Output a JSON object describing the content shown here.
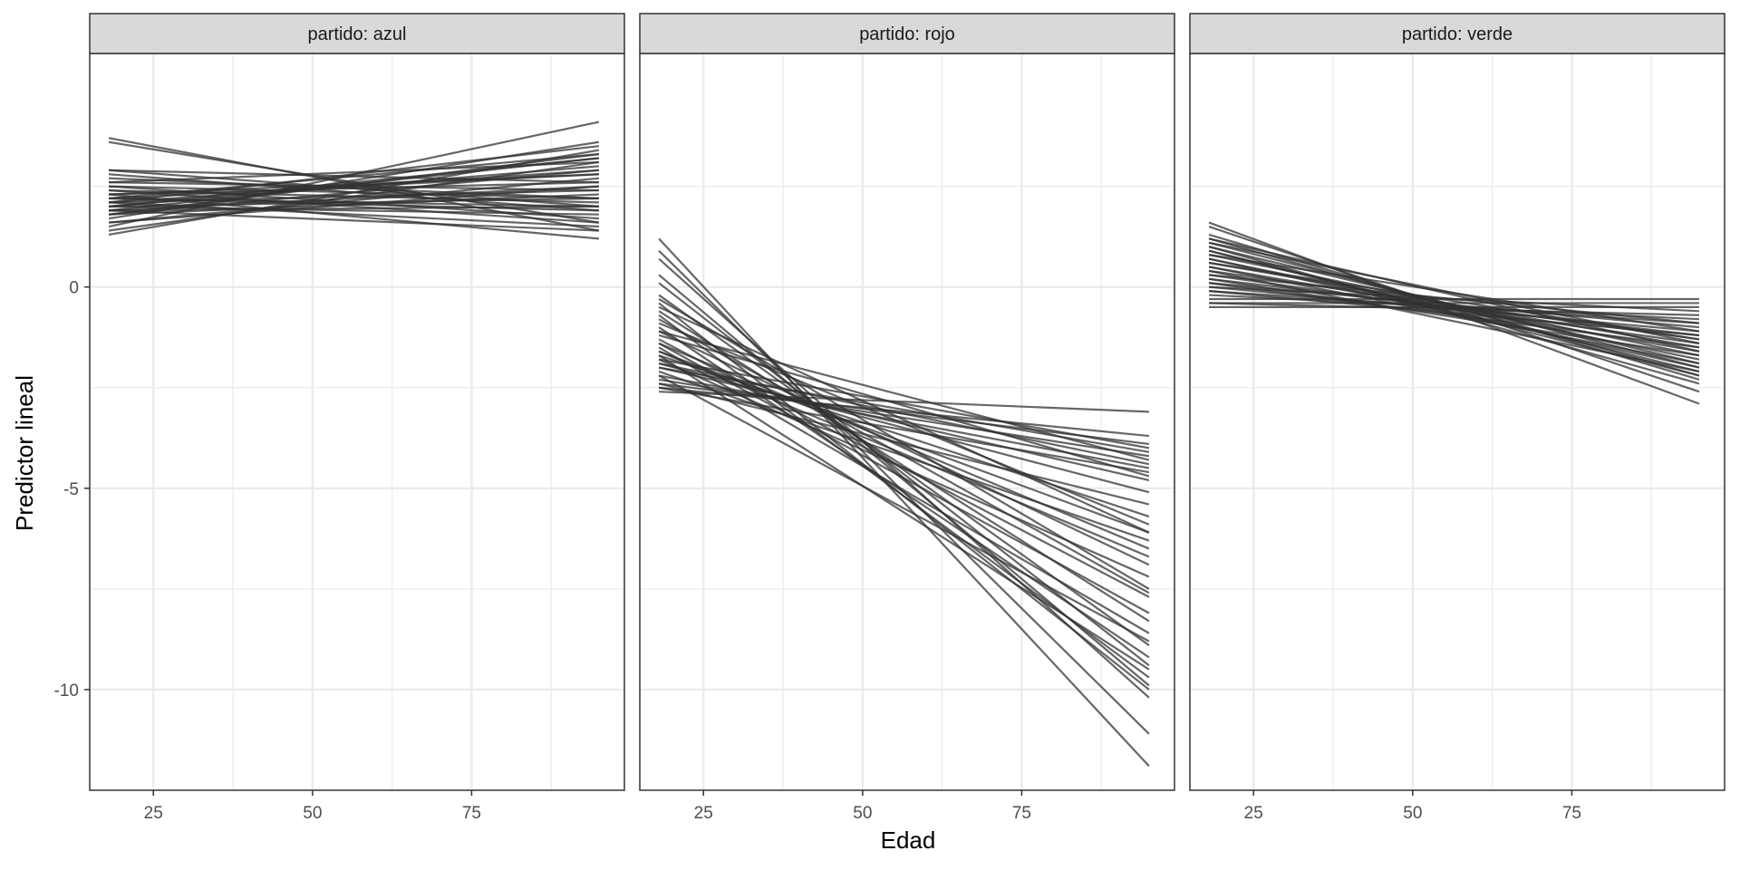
{
  "chart_data": {
    "type": "line",
    "facet_variable": "partido",
    "xlabel": "Edad",
    "ylabel": "Predictor lineal",
    "xlim": [
      15,
      99
    ],
    "ylim": [
      -12.5,
      5.8
    ],
    "x_ticks": [
      25,
      50,
      75
    ],
    "x_tick_labels": [
      "25",
      "50",
      "75"
    ],
    "y_ticks": [
      0,
      -5,
      -10
    ],
    "y_tick_labels": [
      "0",
      "-5",
      "-10"
    ],
    "grid": true,
    "line_color": "#333333",
    "strip_color": "#d9d9d9",
    "grid_color": "#ebebeb",
    "panels": [
      {
        "strip_label": "partido: azul",
        "x_range": [
          18,
          95
        ],
        "lines": [
          {
            "y_start": 3.7,
            "y_end": 1.4
          },
          {
            "y_start": 3.6,
            "y_end": 1.6
          },
          {
            "y_start": 2.9,
            "y_end": 2.0
          },
          {
            "y_start": 2.8,
            "y_end": 1.9
          },
          {
            "y_start": 2.7,
            "y_end": 2.2
          },
          {
            "y_start": 2.6,
            "y_end": 2.4
          },
          {
            "y_start": 2.5,
            "y_end": 1.7
          },
          {
            "y_start": 2.4,
            "y_end": 2.1
          },
          {
            "y_start": 2.3,
            "y_end": 2.6
          },
          {
            "y_start": 2.2,
            "y_end": 2.0
          },
          {
            "y_start": 2.2,
            "y_end": 2.8
          },
          {
            "y_start": 2.1,
            "y_end": 2.4
          },
          {
            "y_start": 2.0,
            "y_end": 3.0
          },
          {
            "y_start": 2.0,
            "y_end": 2.2
          },
          {
            "y_start": 1.9,
            "y_end": 3.2
          },
          {
            "y_start": 1.9,
            "y_end": 2.5
          },
          {
            "y_start": 1.8,
            "y_end": 2.9
          },
          {
            "y_start": 1.8,
            "y_end": 3.3
          },
          {
            "y_start": 1.7,
            "y_end": 3.6
          },
          {
            "y_start": 1.6,
            "y_end": 2.7
          },
          {
            "y_start": 1.5,
            "y_end": 4.1
          },
          {
            "y_start": 1.4,
            "y_end": 3.1
          },
          {
            "y_start": 1.3,
            "y_end": 3.4
          },
          {
            "y_start": 2.1,
            "y_end": 1.5
          },
          {
            "y_start": 2.3,
            "y_end": 1.2
          },
          {
            "y_start": 2.0,
            "y_end": 1.8
          },
          {
            "y_start": 2.6,
            "y_end": 3.1
          },
          {
            "y_start": 1.9,
            "y_end": 2.0
          },
          {
            "y_start": 2.2,
            "y_end": 3.3
          },
          {
            "y_start": 2.4,
            "y_end": 1.6
          },
          {
            "y_start": 2.1,
            "y_end": 2.9
          },
          {
            "y_start": 1.8,
            "y_end": 2.3
          },
          {
            "y_start": 2.9,
            "y_end": 2.6
          },
          {
            "y_start": 2.0,
            "y_end": 3.2
          },
          {
            "y_start": 2.2,
            "y_end": 1.9
          },
          {
            "y_start": 1.6,
            "y_end": 2.5
          },
          {
            "y_start": 2.5,
            "y_end": 2.2
          },
          {
            "y_start": 2.1,
            "y_end": 3.5
          },
          {
            "y_start": 1.9,
            "y_end": 1.4
          },
          {
            "y_start": 2.3,
            "y_end": 2.8
          }
        ]
      },
      {
        "strip_label": "partido: rojo",
        "x_range": [
          18,
          95
        ],
        "lines": [
          {
            "y_start": 1.2,
            "y_end": -11.9
          },
          {
            "y_start": 0.9,
            "y_end": -11.1
          },
          {
            "y_start": 0.7,
            "y_end": -10.2
          },
          {
            "y_start": 0.3,
            "y_end": -9.9
          },
          {
            "y_start": 0.1,
            "y_end": -9.4
          },
          {
            "y_start": -0.2,
            "y_end": -8.9
          },
          {
            "y_start": -0.4,
            "y_end": -10.0
          },
          {
            "y_start": -0.6,
            "y_end": -8.3
          },
          {
            "y_start": -0.8,
            "y_end": -7.6
          },
          {
            "y_start": -1.0,
            "y_end": -9.2
          },
          {
            "y_start": -1.1,
            "y_end": -6.9
          },
          {
            "y_start": -1.3,
            "y_end": -7.7
          },
          {
            "y_start": -1.4,
            "y_end": -6.5
          },
          {
            "y_start": -1.5,
            "y_end": -8.6
          },
          {
            "y_start": -1.6,
            "y_end": -6.1
          },
          {
            "y_start": -1.7,
            "y_end": -5.7
          },
          {
            "y_start": -1.8,
            "y_end": -7.2
          },
          {
            "y_start": -1.9,
            "y_end": -5.1
          },
          {
            "y_start": -2.0,
            "y_end": -4.8
          },
          {
            "y_start": -2.1,
            "y_end": -6.3
          },
          {
            "y_start": -2.2,
            "y_end": -4.5
          },
          {
            "y_start": -2.3,
            "y_end": -4.2
          },
          {
            "y_start": -2.4,
            "y_end": -3.9
          },
          {
            "y_start": -2.5,
            "y_end": -3.7
          },
          {
            "y_start": -2.6,
            "y_end": -3.1
          },
          {
            "y_start": -1.9,
            "y_end": -4.4
          },
          {
            "y_start": -1.2,
            "y_end": -4.7
          },
          {
            "y_start": -0.9,
            "y_end": -5.9
          },
          {
            "y_start": -0.5,
            "y_end": -6.1
          },
          {
            "y_start": -2.2,
            "y_end": -8.8
          },
          {
            "y_start": -1.7,
            "y_end": -9.5
          },
          {
            "y_start": -2.0,
            "y_end": -4.1
          },
          {
            "y_start": -1.4,
            "y_end": -8.1
          },
          {
            "y_start": -0.3,
            "y_end": -7.5
          },
          {
            "y_start": -2.4,
            "y_end": -5.4
          },
          {
            "y_start": -1.1,
            "y_end": -4.3
          },
          {
            "y_start": -1.6,
            "y_end": -6.7
          },
          {
            "y_start": -2.5,
            "y_end": -4.6
          },
          {
            "y_start": -0.7,
            "y_end": -9.7
          },
          {
            "y_start": -1.8,
            "y_end": -4.0
          }
        ]
      },
      {
        "strip_label": "partido: verde",
        "x_range": [
          18,
          95
        ],
        "lines": [
          {
            "y_start": 1.6,
            "y_end": -2.9
          },
          {
            "y_start": 1.5,
            "y_end": -2.6
          },
          {
            "y_start": 1.3,
            "y_end": -2.3
          },
          {
            "y_start": 1.2,
            "y_end": -2.2
          },
          {
            "y_start": 1.1,
            "y_end": -2.0
          },
          {
            "y_start": 1.0,
            "y_end": -1.9
          },
          {
            "y_start": 0.9,
            "y_end": -2.1
          },
          {
            "y_start": 0.8,
            "y_end": -1.7
          },
          {
            "y_start": 0.7,
            "y_end": -1.8
          },
          {
            "y_start": 0.6,
            "y_end": -1.5
          },
          {
            "y_start": 0.5,
            "y_end": -1.6
          },
          {
            "y_start": 0.4,
            "y_end": -1.3
          },
          {
            "y_start": 0.3,
            "y_end": -1.4
          },
          {
            "y_start": 0.2,
            "y_end": -1.2
          },
          {
            "y_start": 0.1,
            "y_end": -1.0
          },
          {
            "y_start": 0.0,
            "y_end": -1.1
          },
          {
            "y_start": -0.1,
            "y_end": -0.9
          },
          {
            "y_start": -0.2,
            "y_end": -0.8
          },
          {
            "y_start": -0.4,
            "y_end": -0.7
          },
          {
            "y_start": -0.5,
            "y_end": -0.5
          },
          {
            "y_start": -0.3,
            "y_end": -0.3
          },
          {
            "y_start": 0.0,
            "y_end": -0.6
          },
          {
            "y_start": 0.5,
            "y_end": -1.9
          },
          {
            "y_start": 0.9,
            "y_end": -2.2
          },
          {
            "y_start": 1.1,
            "y_end": -1.4
          },
          {
            "y_start": 0.3,
            "y_end": -0.9
          },
          {
            "y_start": 0.7,
            "y_end": -2.0
          },
          {
            "y_start": -0.1,
            "y_end": -1.2
          },
          {
            "y_start": 1.2,
            "y_end": -1.6
          },
          {
            "y_start": 0.4,
            "y_end": -2.1
          },
          {
            "y_start": 0.8,
            "y_end": -1.1
          },
          {
            "y_start": 0.2,
            "y_end": -1.7
          },
          {
            "y_start": 0.6,
            "y_end": -1.3
          },
          {
            "y_start": 1.0,
            "y_end": -2.4
          },
          {
            "y_start": -0.4,
            "y_end": -0.4
          },
          {
            "y_start": 0.1,
            "y_end": -1.5
          }
        ]
      }
    ]
  }
}
